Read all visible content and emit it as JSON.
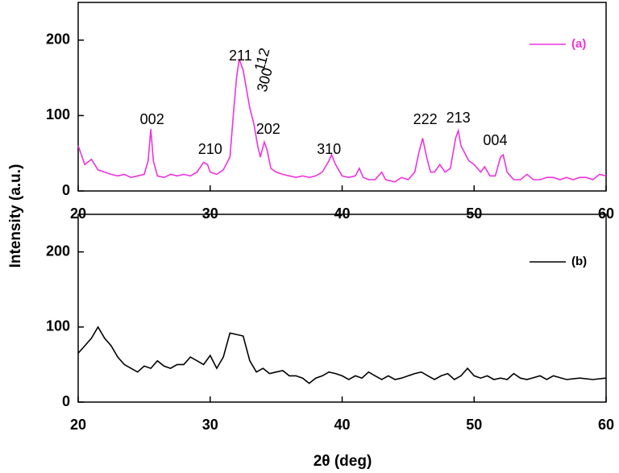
{
  "chart_data": [
    {
      "type": "line",
      "y_label": "Intensity (a.u.)",
      "legend": "upper right",
      "xlim": [
        20,
        60
      ],
      "xticks": [
        20,
        30,
        40,
        50,
        60
      ],
      "ylim": [
        0,
        250
      ],
      "yticks": [
        0,
        100,
        200
      ],
      "series": [
        {
          "name": "(a)",
          "color": "#ee33dd",
          "x": [
            20,
            20.5,
            21,
            21.5,
            22,
            22.5,
            23,
            23.5,
            24,
            24.5,
            25,
            25.3,
            25.5,
            25.7,
            26,
            26.5,
            27,
            27.5,
            28,
            28.5,
            29,
            29.5,
            29.8,
            30,
            30.5,
            31,
            31.5,
            31.8,
            32,
            32.2,
            32.5,
            32.8,
            33,
            33.3,
            33.6,
            33.8,
            34.1,
            34.3,
            34.6,
            35,
            35.5,
            36,
            36.5,
            37,
            37.5,
            38,
            38.5,
            39,
            39.2,
            39.5,
            40,
            40.5,
            41,
            41.3,
            41.6,
            42,
            42.5,
            43,
            43.3,
            44,
            44.5,
            45,
            45.5,
            45.8,
            46.1,
            46.4,
            46.7,
            47,
            47.4,
            47.8,
            48.2,
            48.6,
            48.8,
            49,
            49.3,
            49.6,
            50,
            50.5,
            50.8,
            51.2,
            51.6,
            52,
            52.2,
            52.5,
            53,
            53.5,
            54,
            54.5,
            55,
            55.5,
            56,
            56.5,
            57,
            57.5,
            58,
            58.5,
            59,
            59.5,
            60
          ],
          "values": [
            60,
            35,
            42,
            28,
            25,
            22,
            20,
            22,
            18,
            20,
            22,
            40,
            82,
            40,
            20,
            18,
            22,
            20,
            22,
            20,
            25,
            38,
            35,
            25,
            22,
            28,
            45,
            110,
            150,
            175,
            160,
            130,
            110,
            90,
            60,
            45,
            65,
            55,
            30,
            25,
            22,
            20,
            18,
            20,
            18,
            20,
            25,
            40,
            48,
            35,
            20,
            18,
            20,
            30,
            18,
            15,
            15,
            25,
            15,
            12,
            18,
            15,
            25,
            50,
            70,
            45,
            25,
            25,
            35,
            25,
            30,
            70,
            80,
            60,
            50,
            40,
            35,
            25,
            32,
            20,
            20,
            45,
            48,
            25,
            15,
            15,
            22,
            15,
            15,
            18,
            18,
            15,
            18,
            15,
            18,
            18,
            15,
            22,
            20
          ]
        }
      ],
      "annotations": [
        {
          "text": "002",
          "x": 25.6,
          "y": 94
        },
        {
          "text": "210",
          "x": 30.0,
          "y": 54
        },
        {
          "text": "211",
          "x": 32.3,
          "y": 178
        },
        {
          "text": "112",
          "x": 34.0,
          "y": 174
        },
        {
          "text": "300",
          "x": 34.2,
          "y": 147
        },
        {
          "text": "202",
          "x": 34.4,
          "y": 81
        },
        {
          "text": "310",
          "x": 39.0,
          "y": 54
        },
        {
          "text": "222",
          "x": 46.3,
          "y": 94
        },
        {
          "text": "213",
          "x": 48.8,
          "y": 96
        },
        {
          "text": "004",
          "x": 51.6,
          "y": 66
        }
      ]
    },
    {
      "type": "line",
      "x_label": "2θ (deg)",
      "legend": "upper right",
      "xlim": [
        20,
        60
      ],
      "xticks": [
        20,
        30,
        40,
        50,
        60
      ],
      "ylim": [
        0,
        250
      ],
      "yticks": [
        0,
        100,
        200
      ],
      "series": [
        {
          "name": "(b)",
          "color": "#000000",
          "x": [
            20,
            20.5,
            21,
            21.5,
            22,
            22.5,
            23,
            23.5,
            24,
            24.5,
            25,
            25.5,
            26,
            26.5,
            27,
            27.5,
            28,
            28.5,
            29,
            29.5,
            30,
            30.5,
            31,
            31.5,
            32,
            32.5,
            33,
            33.5,
            34,
            34.5,
            35,
            35.5,
            36,
            36.5,
            37,
            37.5,
            38,
            38.5,
            39,
            39.5,
            40,
            40.5,
            41,
            41.5,
            42,
            42.5,
            43,
            43.5,
            44,
            44.5,
            45,
            45.5,
            46,
            46.5,
            47,
            47.5,
            48,
            48.5,
            49,
            49.5,
            50,
            50.5,
            51,
            51.5,
            52,
            52.5,
            53,
            53.5,
            54,
            55,
            55.5,
            56,
            57,
            58,
            59,
            60
          ],
          "values": [
            65,
            75,
            85,
            100,
            85,
            75,
            60,
            50,
            45,
            40,
            48,
            45,
            55,
            48,
            45,
            50,
            50,
            60,
            55,
            50,
            62,
            45,
            60,
            92,
            90,
            88,
            55,
            40,
            45,
            38,
            40,
            42,
            35,
            35,
            32,
            25,
            32,
            35,
            40,
            38,
            35,
            30,
            35,
            32,
            40,
            35,
            30,
            35,
            30,
            32,
            35,
            38,
            40,
            35,
            30,
            35,
            38,
            30,
            35,
            45,
            35,
            32,
            35,
            30,
            32,
            30,
            38,
            32,
            30,
            35,
            30,
            35,
            30,
            32,
            30,
            32
          ]
        }
      ]
    }
  ]
}
